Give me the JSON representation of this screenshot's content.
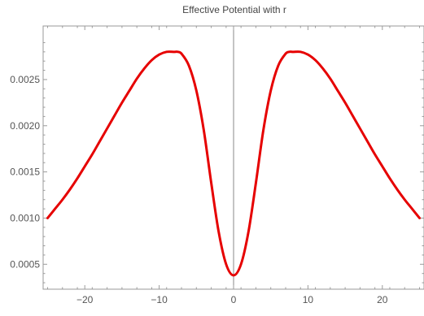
{
  "chart_data": {
    "type": "line",
    "title": "Effective Potential with r",
    "xlabel": "",
    "ylabel": "",
    "xlim": [
      -25.6,
      25.6
    ],
    "ylim": [
      0.00023,
      0.00308
    ],
    "x_ticks": [
      -20,
      -10,
      0,
      10,
      20
    ],
    "x_tick_labels": [
      "−20",
      "−10",
      "0",
      "10",
      "20"
    ],
    "y_ticks": [
      0.0005,
      0.001,
      0.0015,
      0.002,
      0.0025
    ],
    "y_tick_labels": [
      "0.0005",
      "0.0010",
      "0.0015",
      "0.0020",
      "0.0025"
    ],
    "grid": false,
    "series": [
      {
        "color": "#e60000",
        "x": [
          -25,
          -24,
          -23,
          -22,
          -21,
          -20,
          -19,
          -18,
          -17,
          -16,
          -15,
          -14,
          -13,
          -12,
          -11,
          -10,
          -9,
          -8,
          -7.5,
          -7,
          -6,
          -5,
          -4,
          -3,
          -2,
          -1,
          0,
          1,
          2,
          3,
          4,
          5,
          6,
          7,
          7.5,
          8,
          9,
          10,
          11,
          12,
          13,
          14,
          15,
          16,
          17,
          18,
          19,
          20,
          21,
          22,
          23,
          24,
          25
        ],
        "y": [
          0.001,
          0.0011,
          0.0012,
          0.00131,
          0.00143,
          0.00156,
          0.00169,
          0.00183,
          0.00197,
          0.00211,
          0.00225,
          0.00238,
          0.00251,
          0.00262,
          0.00271,
          0.00277,
          0.0028,
          0.0028,
          0.0028,
          0.00278,
          0.00265,
          0.00238,
          0.00195,
          0.00138,
          0.00085,
          0.0005,
          0.00038,
          0.0005,
          0.00085,
          0.00138,
          0.00195,
          0.00238,
          0.00265,
          0.00278,
          0.0028,
          0.0028,
          0.0028,
          0.00277,
          0.00271,
          0.00262,
          0.00251,
          0.00238,
          0.00225,
          0.00211,
          0.00197,
          0.00183,
          0.00169,
          0.00156,
          0.00143,
          0.00131,
          0.0012,
          0.0011,
          0.001
        ]
      }
    ]
  }
}
